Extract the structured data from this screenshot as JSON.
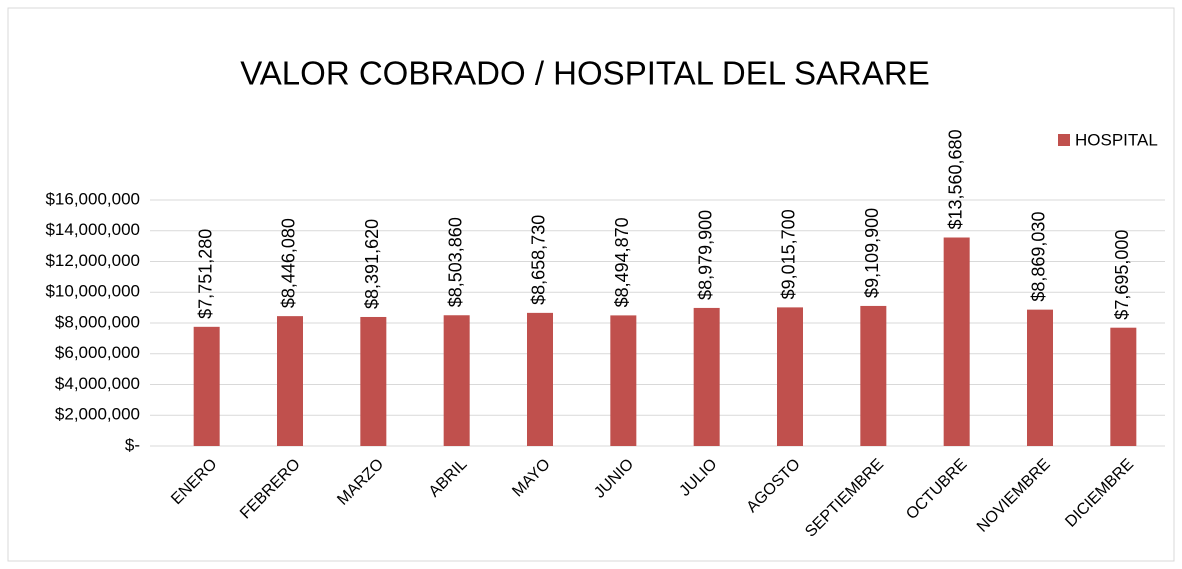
{
  "chart_data": {
    "type": "bar",
    "title": "VALOR COBRADO / HOSPITAL DEL SARARE",
    "categories": [
      "ENERO",
      "FEBRERO",
      "MARZO",
      "ABRIL",
      "MAYO",
      "JUNIO",
      "JULIO",
      "AGOSTO",
      "SEPTIEMBRE",
      "OCTUBRE",
      "NOVIEMBRE",
      "DICIEMBRE"
    ],
    "series": [
      {
        "name": "HOSPITAL",
        "color": "#c0504d",
        "values": [
          7751280,
          8446080,
          8391620,
          8503860,
          8658730,
          8494870,
          8979900,
          9015700,
          9109900,
          13560680,
          8869030,
          7695000
        ],
        "value_labels": [
          "$7,751,280",
          "$8,446,080",
          "$8,391,620",
          "$8,503,860",
          "$8,658,730",
          "$8,494,870",
          "$8,979,900",
          "$9,015,700",
          "$9,109,900",
          "$13,560,680",
          "$8,869,030",
          "$7,695,000"
        ]
      }
    ],
    "ylim": [
      0,
      16000000
    ],
    "yticks": [
      {
        "value": 0,
        "label": "$-"
      },
      {
        "value": 2000000,
        "label": "$2,000,000"
      },
      {
        "value": 4000000,
        "label": "$4,000,000"
      },
      {
        "value": 6000000,
        "label": "$6,000,000"
      },
      {
        "value": 8000000,
        "label": "$8,000,000"
      },
      {
        "value": 10000000,
        "label": "$10,000,000"
      },
      {
        "value": 12000000,
        "label": "$12,000,000"
      },
      {
        "value": 14000000,
        "label": "$14,000,000"
      },
      {
        "value": 16000000,
        "label": "$16,000,000"
      }
    ],
    "grid": true,
    "legend": "top-right"
  }
}
